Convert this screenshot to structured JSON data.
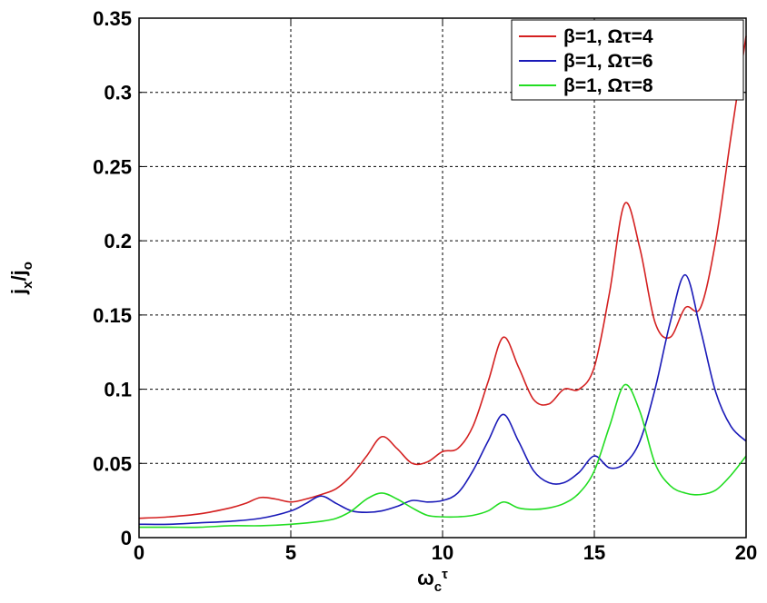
{
  "chart_data": {
    "type": "line",
    "title": "",
    "xlabel": "ω",
    "xlabel_sub": "c",
    "xlabel_sup": "τ",
    "ylabel": "j",
    "ylabel_sub": "x",
    "ylabel_trail": "/j",
    "ylabel_trail_sub": "o",
    "xlim": [
      0,
      20
    ],
    "ylim": [
      0,
      0.35
    ],
    "xticks": [
      0,
      5,
      10,
      15,
      20
    ],
    "yticks": [
      0,
      0.05,
      0.1,
      0.15,
      0.2,
      0.25,
      0.3,
      0.35
    ],
    "xtick_labels": [
      "0",
      "5",
      "10",
      "15",
      "20"
    ],
    "ytick_labels": [
      "0",
      "0.05",
      "0.1",
      "0.15",
      "0.2",
      "0.25",
      "0.3",
      "0.35"
    ],
    "grid": true,
    "legend_position": "top-right",
    "series": [
      {
        "name": "β=1,  Ωτ=4",
        "color": "#d42020",
        "x": [
          0,
          1,
          2,
          3,
          3.5,
          4,
          4.5,
          5,
          5.5,
          6,
          6.5,
          7,
          7.5,
          8,
          8.5,
          9,
          9.5,
          10,
          10.5,
          11,
          11.5,
          12,
          12.5,
          13,
          13.5,
          14,
          14.5,
          15,
          15.5,
          16,
          16.5,
          17,
          17.5,
          18,
          18.5,
          19,
          19.5,
          20
        ],
        "y": [
          0.013,
          0.014,
          0.016,
          0.02,
          0.023,
          0.027,
          0.026,
          0.024,
          0.026,
          0.029,
          0.033,
          0.042,
          0.055,
          0.068,
          0.06,
          0.05,
          0.051,
          0.058,
          0.06,
          0.075,
          0.105,
          0.135,
          0.115,
          0.093,
          0.09,
          0.1,
          0.1,
          0.115,
          0.165,
          0.225,
          0.195,
          0.145,
          0.135,
          0.155,
          0.155,
          0.2,
          0.27,
          0.338
        ]
      },
      {
        "name": "β=1,  Ωτ=6",
        "color": "#1a1ab8",
        "x": [
          0,
          1,
          2,
          3,
          4,
          5,
          5.5,
          6,
          6.5,
          7,
          7.5,
          8,
          8.5,
          9,
          9.5,
          10,
          10.5,
          11,
          11.5,
          12,
          12.5,
          13,
          13.5,
          14,
          14.5,
          15,
          15.5,
          16,
          16.5,
          17,
          17.5,
          18,
          18.5,
          19,
          19.5,
          20
        ],
        "y": [
          0.009,
          0.009,
          0.01,
          0.011,
          0.013,
          0.018,
          0.023,
          0.028,
          0.023,
          0.018,
          0.017,
          0.018,
          0.021,
          0.025,
          0.024,
          0.025,
          0.03,
          0.045,
          0.065,
          0.083,
          0.065,
          0.045,
          0.037,
          0.037,
          0.044,
          0.055,
          0.047,
          0.05,
          0.065,
          0.1,
          0.145,
          0.177,
          0.14,
          0.098,
          0.075,
          0.065
        ]
      },
      {
        "name": "β=1,  Ωτ=8",
        "color": "#22dd22",
        "x": [
          0,
          1,
          2,
          3,
          4,
          5,
          6,
          6.5,
          7,
          7.5,
          8,
          8.5,
          9,
          9.5,
          10,
          10.5,
          11,
          11.5,
          12,
          12.5,
          13,
          13.5,
          14,
          14.5,
          15,
          15.5,
          16,
          16.5,
          17,
          17.5,
          18,
          18.5,
          19,
          19.5,
          20
        ],
        "y": [
          0.007,
          0.007,
          0.007,
          0.008,
          0.008,
          0.009,
          0.011,
          0.013,
          0.018,
          0.026,
          0.03,
          0.026,
          0.02,
          0.015,
          0.014,
          0.014,
          0.015,
          0.018,
          0.024,
          0.02,
          0.019,
          0.02,
          0.023,
          0.03,
          0.045,
          0.075,
          0.103,
          0.085,
          0.05,
          0.035,
          0.03,
          0.029,
          0.032,
          0.042,
          0.055
        ]
      }
    ]
  }
}
